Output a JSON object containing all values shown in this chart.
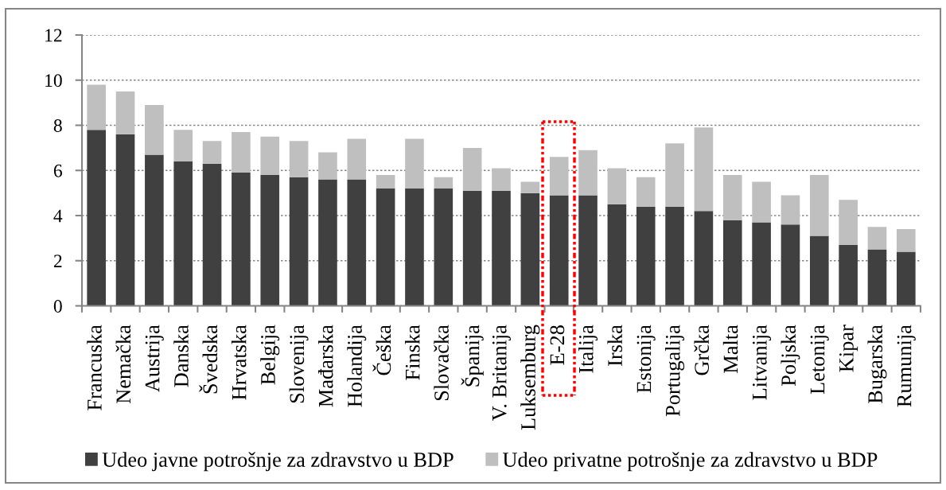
{
  "chart_data": {
    "type": "bar",
    "stacked": true,
    "categories": [
      "Francuska",
      "Nemačka",
      "Austrija",
      "Danska",
      "Švedska",
      "Hrvatska",
      "Belgija",
      "Slovenija",
      "Mađarska",
      "Holandija",
      "Češka",
      "Finska",
      "Slovačka",
      "Španija",
      "V. Britanija",
      "Luksemburg",
      "E-28",
      "Italija",
      "Irska",
      "Estonija",
      "Portugalija",
      "Grčka",
      "Malta",
      "Litvanija",
      "Poljska",
      "Letonija",
      "Kipar",
      "Bugarska",
      "Rumunija"
    ],
    "series": [
      {
        "name": "Udeo javne potrošnje za zdravstvo u BDP",
        "color": "#404040",
        "values": [
          7.8,
          7.6,
          6.7,
          6.4,
          6.3,
          5.9,
          5.8,
          5.7,
          5.6,
          5.6,
          5.2,
          5.2,
          5.2,
          5.1,
          5.1,
          5.0,
          4.9,
          4.9,
          4.5,
          4.4,
          4.4,
          4.2,
          3.8,
          3.7,
          3.6,
          3.1,
          2.7,
          2.5,
          2.4
        ]
      },
      {
        "name": "Udeo privatne potrošnje za zdravstvo u BDP",
        "color": "#bfbfbf",
        "values": [
          2.0,
          1.9,
          2.2,
          1.4,
          1.0,
          1.8,
          1.7,
          1.6,
          1.2,
          1.8,
          0.6,
          2.2,
          0.5,
          1.9,
          1.0,
          0.5,
          1.7,
          2.0,
          1.6,
          1.3,
          2.8,
          3.7,
          2.0,
          1.8,
          1.3,
          2.7,
          2.0,
          1.0,
          1.0
        ]
      }
    ],
    "ylim": [
      0,
      12
    ],
    "yticks": [
      0,
      2,
      4,
      6,
      8,
      10,
      12
    ],
    "grid": "y",
    "legend": "bottom"
  }
}
